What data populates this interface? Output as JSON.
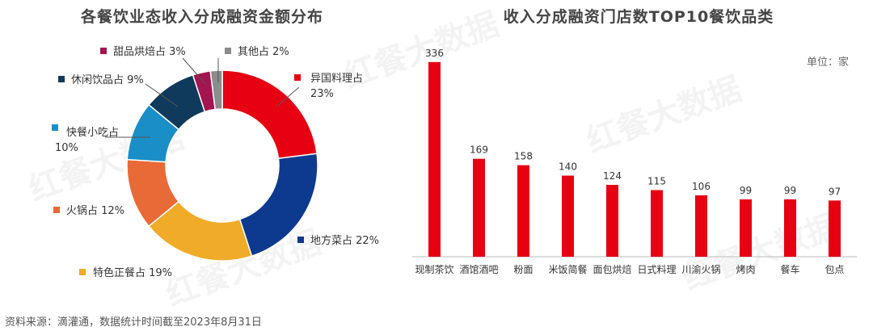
{
  "footer": "资料来源：滴灌通，数据统计时间截至2023年8月31日",
  "watermark": "红餐大数据",
  "chart_data": [
    {
      "type": "pie",
      "title": "各餐饮业态收入分成融资金额分布",
      "donut": true,
      "unit": "%",
      "slices": [
        {
          "label": "异国料理占",
          "value": 23,
          "color": "#e60012"
        },
        {
          "label": "地方菜占",
          "value": 22,
          "color": "#0d3a8e"
        },
        {
          "label": "特色正餐占",
          "value": 19,
          "color": "#f0ab28"
        },
        {
          "label": "火锅占",
          "value": 12,
          "color": "#e86a36"
        },
        {
          "label": "快餐小吃占",
          "value": 10,
          "color": "#1a8ec6"
        },
        {
          "label": "休闲饮品占",
          "value": 9,
          "color": "#0f3a5c"
        },
        {
          "label": "甜品烘焙占",
          "value": 3,
          "color": "#a3154f"
        },
        {
          "label": "其他占",
          "value": 2,
          "color": "#8c8c8c"
        }
      ]
    },
    {
      "type": "bar",
      "title": "收入分成融资门店数TOP10餐饮品类",
      "unit_label": "单位：家",
      "color": "#e60012",
      "categories": [
        "现制茶饮",
        "酒馆酒吧",
        "粉面",
        "米饭简餐",
        "面包烘焙",
        "日式料理",
        "川渝火锅",
        "烤肉",
        "餐车",
        "包点"
      ],
      "values": [
        336,
        169,
        158,
        140,
        124,
        115,
        106,
        99,
        99,
        97
      ],
      "ylim": [
        0,
        340
      ]
    }
  ]
}
